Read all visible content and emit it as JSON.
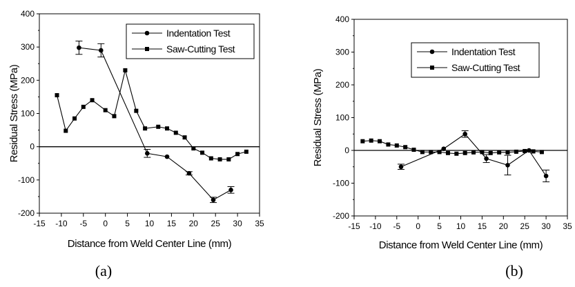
{
  "chart_data": [
    {
      "type": "line",
      "caption": "(a)",
      "xlabel": "Distance from Weld Center Line (mm)",
      "ylabel": "Residual Stress (MPa)",
      "xlim": [
        -15,
        35
      ],
      "ylim": [
        -200,
        400
      ],
      "xticks": [
        -15,
        -10,
        -5,
        0,
        5,
        10,
        15,
        20,
        25,
        30,
        35
      ],
      "yticks": [
        -200,
        -100,
        0,
        100,
        200,
        300,
        400
      ],
      "legend": "top-right",
      "series": [
        {
          "name": "Indentation Test",
          "marker": "circle",
          "x": [
            -6,
            -1,
            9.5,
            14,
            19,
            24.5,
            28.5
          ],
          "y": [
            298,
            290,
            -20,
            -30,
            -80,
            -160,
            -130
          ],
          "err": [
            20,
            20,
            12,
            0,
            5,
            8,
            10
          ]
        },
        {
          "name": "Saw-Cutting Test",
          "marker": "square",
          "x": [
            -11,
            -9,
            -7,
            -5,
            -3,
            0,
            2,
            4.5,
            7,
            9,
            12,
            14,
            16,
            18,
            20,
            22,
            24,
            26,
            28,
            30,
            32
          ],
          "y": [
            155,
            48,
            85,
            120,
            140,
            110,
            92,
            230,
            108,
            55,
            60,
            55,
            42,
            28,
            -5,
            -18,
            -35,
            -38,
            -38,
            -22,
            -15
          ],
          "err": []
        }
      ]
    },
    {
      "type": "line",
      "caption": "(b)",
      "xlabel": "Distance from Weld Center Line (mm)",
      "ylabel": "Residual Stress (MPa)",
      "xlim": [
        -15,
        35
      ],
      "ylim": [
        -200,
        400
      ],
      "xticks": [
        -15,
        -10,
        -5,
        0,
        5,
        10,
        15,
        20,
        25,
        30,
        35
      ],
      "yticks": [
        -200,
        -100,
        0,
        100,
        200,
        300,
        400
      ],
      "legend": "top-right",
      "series": [
        {
          "name": "Indentation Test",
          "marker": "circle",
          "x": [
            -4,
            6,
            11,
            16,
            21,
            26,
            30
          ],
          "y": [
            -50,
            5,
            50,
            -25,
            -45,
            0,
            -78
          ],
          "err": [
            8,
            0,
            10,
            12,
            30,
            0,
            18
          ]
        },
        {
          "name": "Saw-Cutting Test",
          "marker": "square",
          "x": [
            -13,
            -11,
            -9,
            -7,
            -5,
            -3,
            -1,
            1,
            3,
            5,
            7,
            9,
            11,
            13,
            15,
            17,
            19,
            21,
            23,
            25,
            27,
            29
          ],
          "y": [
            28,
            30,
            28,
            18,
            15,
            10,
            2,
            -5,
            -5,
            -5,
            -8,
            -10,
            -8,
            -6,
            -5,
            -8,
            -6,
            -6,
            -4,
            -2,
            -3,
            -5
          ],
          "err": []
        }
      ]
    }
  ]
}
